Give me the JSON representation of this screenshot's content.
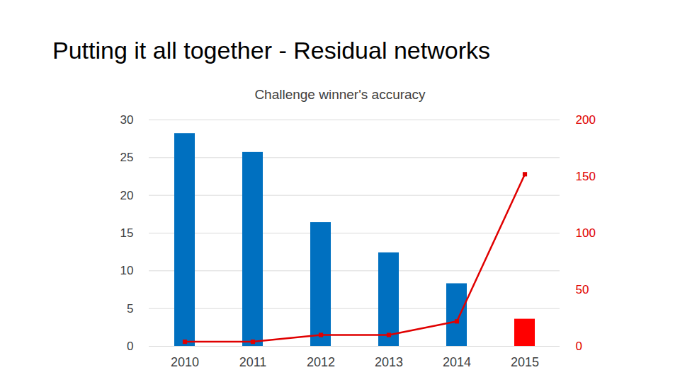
{
  "heading": "Putting it all together - Residual networks",
  "chart_data": {
    "type": "bar",
    "title": "Challenge winner's accuracy",
    "categories": [
      "2010",
      "2011",
      "2012",
      "2013",
      "2014",
      "2015"
    ],
    "series": [
      {
        "type": "bar",
        "values": [
          28.2,
          25.7,
          16.4,
          12.4,
          8.3,
          3.6
        ],
        "colors": [
          "#0070c0",
          "#0070c0",
          "#0070c0",
          "#0070c0",
          "#0070c0",
          "#ff0000"
        ]
      },
      {
        "type": "line",
        "axis": "y2",
        "color": "#e00000",
        "marker": "square",
        "values": [
          4,
          4,
          10,
          10,
          22,
          152
        ]
      }
    ],
    "ylim": [
      0,
      30
    ],
    "yticks": [
      0,
      5,
      10,
      15,
      20,
      25,
      30
    ],
    "y2lim": [
      0,
      200
    ],
    "y2ticks": [
      0,
      50,
      100,
      150,
      200
    ],
    "grid": true
  }
}
